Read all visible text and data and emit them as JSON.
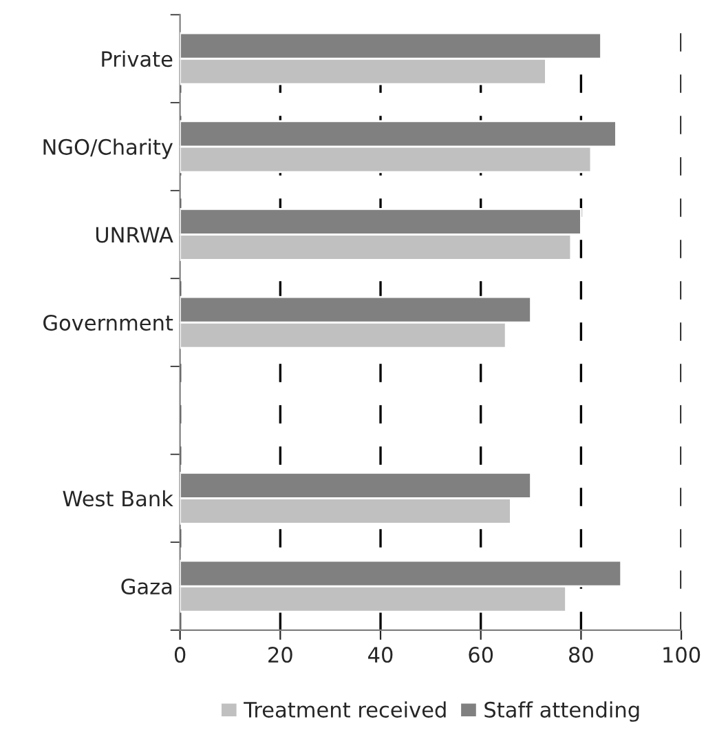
{
  "chart_data": {
    "type": "bar",
    "orientation": "horizontal",
    "categories": [
      "Private",
      "NGO/Charity",
      "UNRWA",
      "Government",
      null,
      "West Bank",
      "Gaza"
    ],
    "series": [
      {
        "name": "Treatment received",
        "color": "#c0c0c0",
        "values": [
          73,
          82,
          78,
          65,
          null,
          66,
          77
        ]
      },
      {
        "name": "Staff attending",
        "color": "#808080",
        "values": [
          84,
          87,
          80,
          70,
          null,
          70,
          88
        ]
      }
    ],
    "xlim": [
      0,
      100
    ],
    "xticks": [
      0,
      20,
      40,
      60,
      80,
      100
    ],
    "grid": "x",
    "legend": "bottom"
  }
}
